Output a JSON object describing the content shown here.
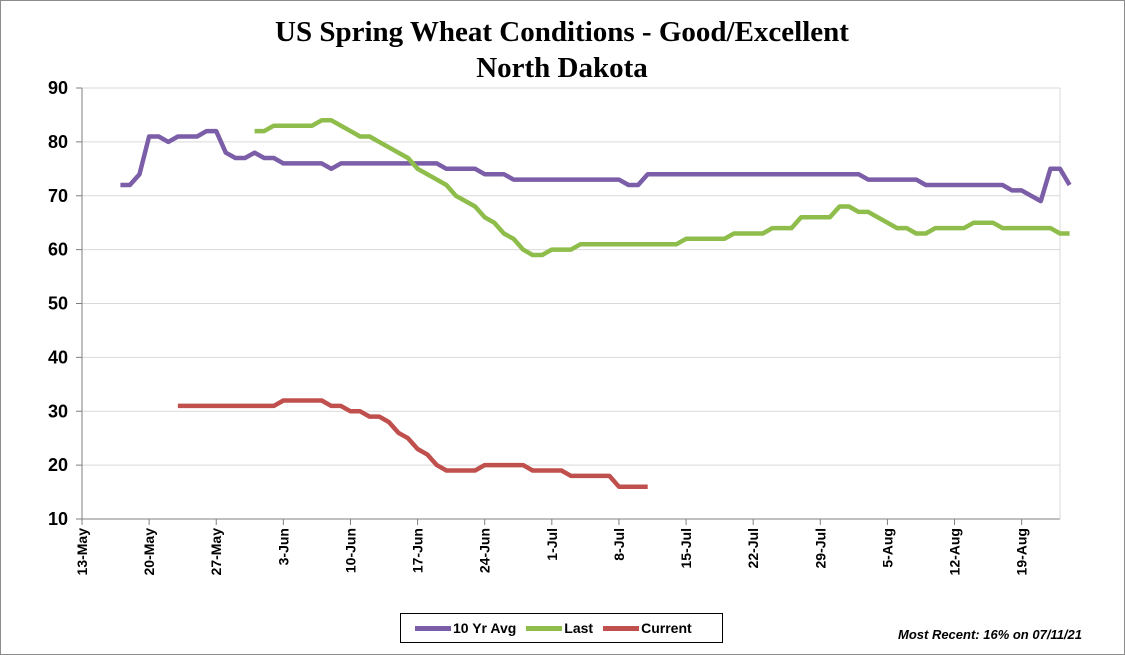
{
  "chart_data": {
    "type": "line",
    "title": "US Spring Wheat Conditions - Good/Excellent",
    "subtitle": "North Dakota",
    "xlabel": "",
    "ylabel": "",
    "ylim": [
      10,
      90
    ],
    "yticks": [
      10,
      20,
      30,
      40,
      50,
      60,
      70,
      80,
      90
    ],
    "xlim": [
      "2021-05-13",
      "2021-08-23"
    ],
    "x_tick_labels": [
      "13-May",
      "20-May",
      "27-May",
      "3-Jun",
      "10-Jun",
      "17-Jun",
      "24-Jun",
      "1-Jul",
      "8-Jul",
      "15-Jul",
      "22-Jul",
      "29-Jul",
      "5-Aug",
      "12-Aug",
      "19-Aug"
    ],
    "grid": "horizontal",
    "legend_position": "bottom",
    "series": [
      {
        "name": "10 Yr Avg",
        "color": "#7b5ea7",
        "points": [
          [
            "2021-05-17",
            72
          ],
          [
            "2021-05-18",
            72
          ],
          [
            "2021-05-19",
            74
          ],
          [
            "2021-05-20",
            81
          ],
          [
            "2021-05-21",
            81
          ],
          [
            "2021-05-22",
            80
          ],
          [
            "2021-05-23",
            81
          ],
          [
            "2021-05-24",
            81
          ],
          [
            "2021-05-25",
            81
          ],
          [
            "2021-05-26",
            82
          ],
          [
            "2021-05-27",
            82
          ],
          [
            "2021-05-28",
            78
          ],
          [
            "2021-05-29",
            77
          ],
          [
            "2021-05-30",
            77
          ],
          [
            "2021-05-31",
            78
          ],
          [
            "2021-06-01",
            77
          ],
          [
            "2021-06-02",
            77
          ],
          [
            "2021-06-03",
            76
          ],
          [
            "2021-06-04",
            76
          ],
          [
            "2021-06-05",
            76
          ],
          [
            "2021-06-06",
            76
          ],
          [
            "2021-06-07",
            76
          ],
          [
            "2021-06-08",
            75
          ],
          [
            "2021-06-09",
            76
          ],
          [
            "2021-06-10",
            76
          ],
          [
            "2021-06-16",
            76
          ],
          [
            "2021-06-17",
            76
          ],
          [
            "2021-06-18",
            76
          ],
          [
            "2021-06-19",
            76
          ],
          [
            "2021-06-20",
            75
          ],
          [
            "2021-06-23",
            75
          ],
          [
            "2021-06-24",
            74
          ],
          [
            "2021-06-26",
            74
          ],
          [
            "2021-06-27",
            73
          ],
          [
            "2021-07-07",
            73
          ],
          [
            "2021-07-08",
            73
          ],
          [
            "2021-07-09",
            72
          ],
          [
            "2021-07-10",
            72
          ],
          [
            "2021-07-11",
            74
          ],
          [
            "2021-07-28",
            74
          ],
          [
            "2021-08-02",
            74
          ],
          [
            "2021-08-03",
            73
          ],
          [
            "2021-08-08",
            73
          ],
          [
            "2021-08-09",
            72
          ],
          [
            "2021-08-17",
            72
          ],
          [
            "2021-08-18",
            71
          ],
          [
            "2021-08-19",
            71
          ],
          [
            "2021-08-20",
            70
          ],
          [
            "2021-08-21",
            69
          ],
          [
            "2021-08-22",
            75
          ],
          [
            "2021-08-23",
            75
          ],
          [
            "2021-08-24",
            72
          ]
        ]
      },
      {
        "name": "Last",
        "color": "#8ebd4c",
        "points": [
          [
            "2021-05-31",
            82
          ],
          [
            "2021-06-01",
            82
          ],
          [
            "2021-06-02",
            83
          ],
          [
            "2021-06-05",
            83
          ],
          [
            "2021-06-06",
            83
          ],
          [
            "2021-06-07",
            84
          ],
          [
            "2021-06-08",
            84
          ],
          [
            "2021-06-09",
            83
          ],
          [
            "2021-06-10",
            82
          ],
          [
            "2021-06-11",
            81
          ],
          [
            "2021-06-12",
            81
          ],
          [
            "2021-06-13",
            80
          ],
          [
            "2021-06-14",
            79
          ],
          [
            "2021-06-15",
            78
          ],
          [
            "2021-06-16",
            77
          ],
          [
            "2021-06-17",
            75
          ],
          [
            "2021-06-18",
            74
          ],
          [
            "2021-06-19",
            73
          ],
          [
            "2021-06-20",
            72
          ],
          [
            "2021-06-21",
            70
          ],
          [
            "2021-06-22",
            69
          ],
          [
            "2021-06-23",
            68
          ],
          [
            "2021-06-24",
            66
          ],
          [
            "2021-06-25",
            65
          ],
          [
            "2021-06-26",
            63
          ],
          [
            "2021-06-27",
            62
          ],
          [
            "2021-06-28",
            60
          ],
          [
            "2021-06-29",
            59
          ],
          [
            "2021-06-30",
            59
          ],
          [
            "2021-07-01",
            60
          ],
          [
            "2021-07-03",
            60
          ],
          [
            "2021-07-04",
            61
          ],
          [
            "2021-07-14",
            61
          ],
          [
            "2021-07-15",
            62
          ],
          [
            "2021-07-19",
            62
          ],
          [
            "2021-07-20",
            63
          ],
          [
            "2021-07-23",
            63
          ],
          [
            "2021-07-24",
            64
          ],
          [
            "2021-07-26",
            64
          ],
          [
            "2021-07-27",
            66
          ],
          [
            "2021-07-30",
            66
          ],
          [
            "2021-07-31",
            68
          ],
          [
            "2021-08-01",
            68
          ],
          [
            "2021-08-02",
            67
          ],
          [
            "2021-08-03",
            67
          ],
          [
            "2021-08-04",
            66
          ],
          [
            "2021-08-05",
            65
          ],
          [
            "2021-08-06",
            64
          ],
          [
            "2021-08-07",
            64
          ],
          [
            "2021-08-08",
            63
          ],
          [
            "2021-08-09",
            63
          ],
          [
            "2021-08-10",
            64
          ],
          [
            "2021-08-13",
            64
          ],
          [
            "2021-08-14",
            65
          ],
          [
            "2021-08-16",
            65
          ],
          [
            "2021-08-17",
            64
          ],
          [
            "2021-08-22",
            64
          ],
          [
            "2021-08-23",
            63
          ],
          [
            "2021-08-24",
            63
          ]
        ]
      },
      {
        "name": "Current",
        "color": "#c0504d",
        "points": [
          [
            "2021-05-23",
            31
          ],
          [
            "2021-06-01",
            31
          ],
          [
            "2021-06-02",
            31
          ],
          [
            "2021-06-03",
            32
          ],
          [
            "2021-06-06",
            32
          ],
          [
            "2021-06-07",
            32
          ],
          [
            "2021-06-08",
            31
          ],
          [
            "2021-06-09",
            31
          ],
          [
            "2021-06-10",
            30
          ],
          [
            "2021-06-11",
            30
          ],
          [
            "2021-06-12",
            29
          ],
          [
            "2021-06-13",
            29
          ],
          [
            "2021-06-14",
            28
          ],
          [
            "2021-06-15",
            26
          ],
          [
            "2021-06-16",
            25
          ],
          [
            "2021-06-17",
            23
          ],
          [
            "2021-06-18",
            22
          ],
          [
            "2021-06-19",
            20
          ],
          [
            "2021-06-20",
            19
          ],
          [
            "2021-06-23",
            19
          ],
          [
            "2021-06-24",
            20
          ],
          [
            "2021-06-28",
            20
          ],
          [
            "2021-06-29",
            19
          ],
          [
            "2021-07-02",
            19
          ],
          [
            "2021-07-03",
            18
          ],
          [
            "2021-07-07",
            18
          ],
          [
            "2021-07-08",
            16
          ],
          [
            "2021-07-11",
            16
          ]
        ]
      }
    ]
  },
  "legend": {
    "items": [
      {
        "label": "10 Yr Avg",
        "color": "#7b5ea7"
      },
      {
        "label": "Last",
        "color": "#8ebd4c"
      },
      {
        "label": "Current",
        "color": "#c0504d"
      }
    ]
  },
  "note": "Most Recent: 16% on 07/11/21"
}
